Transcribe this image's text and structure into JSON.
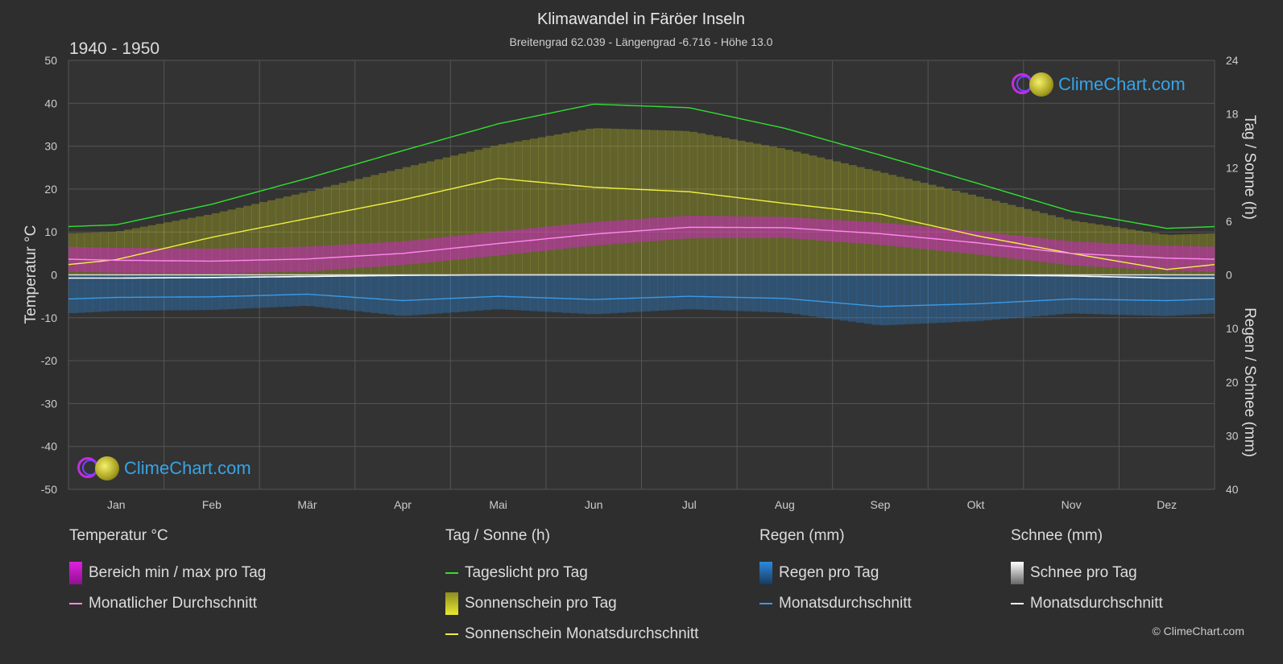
{
  "title": "Klimawandel in Färöer Inseln",
  "subtitle": "Breitengrad 62.039 - Längengrad -6.716 - Höhe 13.0",
  "period": "1940 - 1950",
  "brand": "ClimeChart.com",
  "copyright": "© ClimeChart.com",
  "colors": {
    "temp_range": "#e020e0",
    "temp_avg": "#ff88ee",
    "daylight": "#30e030",
    "sunshine_fill": "#c8c820",
    "sunshine_avg": "#f0f040",
    "rain": "#2a8ae0",
    "rain_avg": "#3a9ae8",
    "snow": "#cccccc",
    "snow_avg": "#ffffff"
  },
  "chart_data": {
    "type": "line",
    "months": [
      "Jan",
      "Feb",
      "Mär",
      "Apr",
      "Mai",
      "Jun",
      "Jul",
      "Aug",
      "Sep",
      "Okt",
      "Nov",
      "Dez"
    ],
    "axes": {
      "left": {
        "label": "Temperatur °C",
        "ticks": [
          50,
          40,
          30,
          20,
          10,
          0,
          -10,
          -20,
          -30,
          -40,
          -50
        ],
        "range": [
          -50,
          50
        ]
      },
      "right_top": {
        "label": "Tag / Sonne (h)",
        "ticks": [
          24,
          18,
          12,
          6,
          0
        ],
        "range": [
          0,
          24
        ]
      },
      "right_bottom": {
        "label": "Regen / Schnee (mm)",
        "ticks": [
          0,
          10,
          20,
          30,
          40
        ],
        "range": [
          0,
          40
        ]
      }
    },
    "grid": true,
    "series": [
      {
        "name": "Tageslicht pro Tag",
        "unit": "h",
        "values": [
          5.6,
          7.9,
          10.8,
          13.9,
          16.9,
          19.1,
          18.7,
          16.4,
          13.4,
          10.3,
          7.1,
          5.2
        ]
      },
      {
        "name": "Sonnenschein Monatsdurchschnitt",
        "unit": "h",
        "values": [
          1.7,
          4.2,
          6.3,
          8.4,
          10.8,
          9.8,
          9.3,
          8.0,
          6.8,
          4.4,
          2.4,
          0.6
        ]
      },
      {
        "name": "Monatlicher Durchschnitt",
        "unit": "°C",
        "values": [
          3.4,
          3.2,
          3.7,
          5.0,
          7.3,
          9.5,
          11.1,
          11.0,
          9.6,
          7.5,
          5.0,
          3.9
        ]
      },
      {
        "name": "Bereich min / max pro Tag",
        "unit": "°C",
        "min": [
          0.5,
          0.3,
          0.8,
          2.3,
          4.5,
          6.8,
          8.5,
          8.6,
          7.0,
          4.8,
          2.2,
          1.0
        ],
        "max": [
          6.3,
          6.1,
          6.6,
          7.8,
          10.1,
          12.3,
          13.8,
          13.5,
          12.2,
          10.2,
          7.8,
          6.8
        ]
      },
      {
        "name": "Regen Monatsdurchschnitt",
        "unit": "mm",
        "values": [
          4.2,
          4.1,
          3.6,
          4.8,
          4.0,
          4.6,
          4.0,
          4.4,
          5.9,
          5.4,
          4.5,
          4.8
        ]
      },
      {
        "name": "Schnee Monatsdurchschnitt",
        "unit": "mm",
        "values": [
          0.6,
          0.5,
          0.3,
          0.1,
          0.0,
          0.0,
          0.0,
          0.0,
          0.0,
          0.0,
          0.2,
          0.6
        ]
      }
    ]
  },
  "legend": {
    "temperature": {
      "heading": "Temperatur °C",
      "items": [
        "Bereich min / max pro Tag",
        "Monatlicher Durchschnitt"
      ]
    },
    "daysun": {
      "heading": "Tag / Sonne (h)",
      "items": [
        "Tageslicht pro Tag",
        "Sonnenschein pro Tag",
        "Sonnenschein Monatsdurchschnitt"
      ]
    },
    "rain": {
      "heading": "Regen (mm)",
      "items": [
        "Regen pro Tag",
        "Monatsdurchschnitt"
      ]
    },
    "snow": {
      "heading": "Schnee (mm)",
      "items": [
        "Schnee pro Tag",
        "Monatsdurchschnitt"
      ]
    }
  }
}
